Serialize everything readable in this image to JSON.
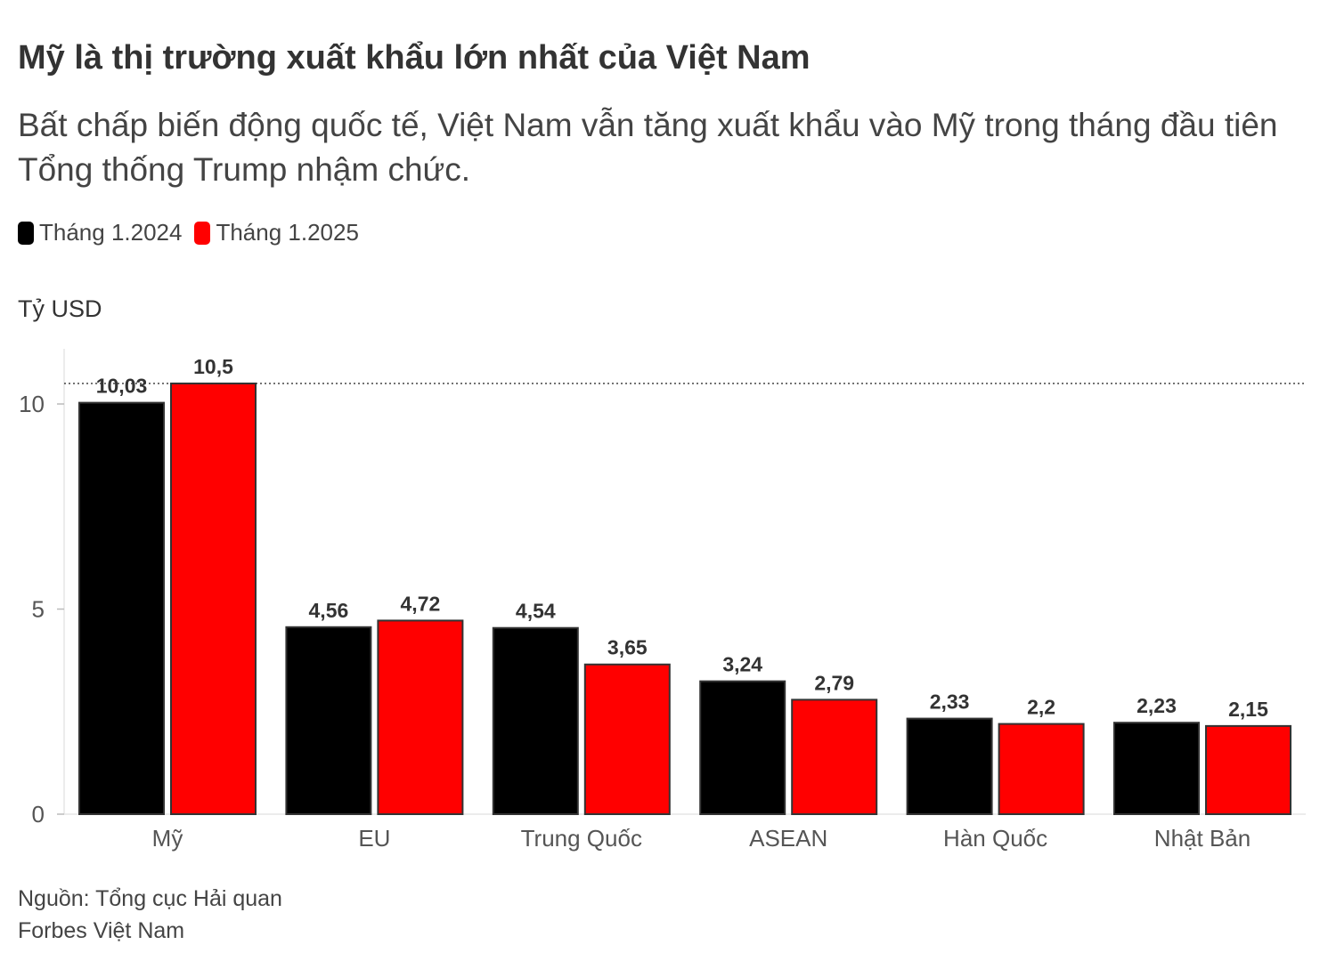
{
  "title": "Mỹ là thị trường xuất khẩu lớn nhất của Việt Nam",
  "subtitle": "Bất chấp biến động quốc tế, Việt Nam vẫn tăng xuất khẩu vào Mỹ trong tháng đầu tiên Tổng thống Trump nhậm chức.",
  "unit_label": "Tỷ USD",
  "source": "Nguồn: Tổng cục Hải quan",
  "publisher": "Forbes Việt Nam",
  "colors": {
    "series_2024": "#000000",
    "series_2025": "#ff0000"
  },
  "chart_data": {
    "type": "bar",
    "categories": [
      "Mỹ",
      "EU",
      "Trung Quốc",
      "ASEAN",
      "Hàn Quốc",
      "Nhật Bản"
    ],
    "series": [
      {
        "name": "Tháng 1.2024",
        "values": [
          10.03,
          4.56,
          4.54,
          3.24,
          2.33,
          2.23
        ],
        "labels": [
          "10,03",
          "4,56",
          "4,54",
          "3,24",
          "2,33",
          "2,23"
        ]
      },
      {
        "name": "Tháng 1.2025",
        "values": [
          10.5,
          4.72,
          3.65,
          2.79,
          2.2,
          2.15
        ],
        "labels": [
          "10,5",
          "4,72",
          "3,65",
          "2,79",
          "2,2",
          "2,15"
        ]
      }
    ],
    "yticks": [
      0,
      5,
      10
    ],
    "ylim": [
      0,
      11.3
    ],
    "reference_line": 10.5,
    "grid": false,
    "legend_position": "top-left"
  }
}
